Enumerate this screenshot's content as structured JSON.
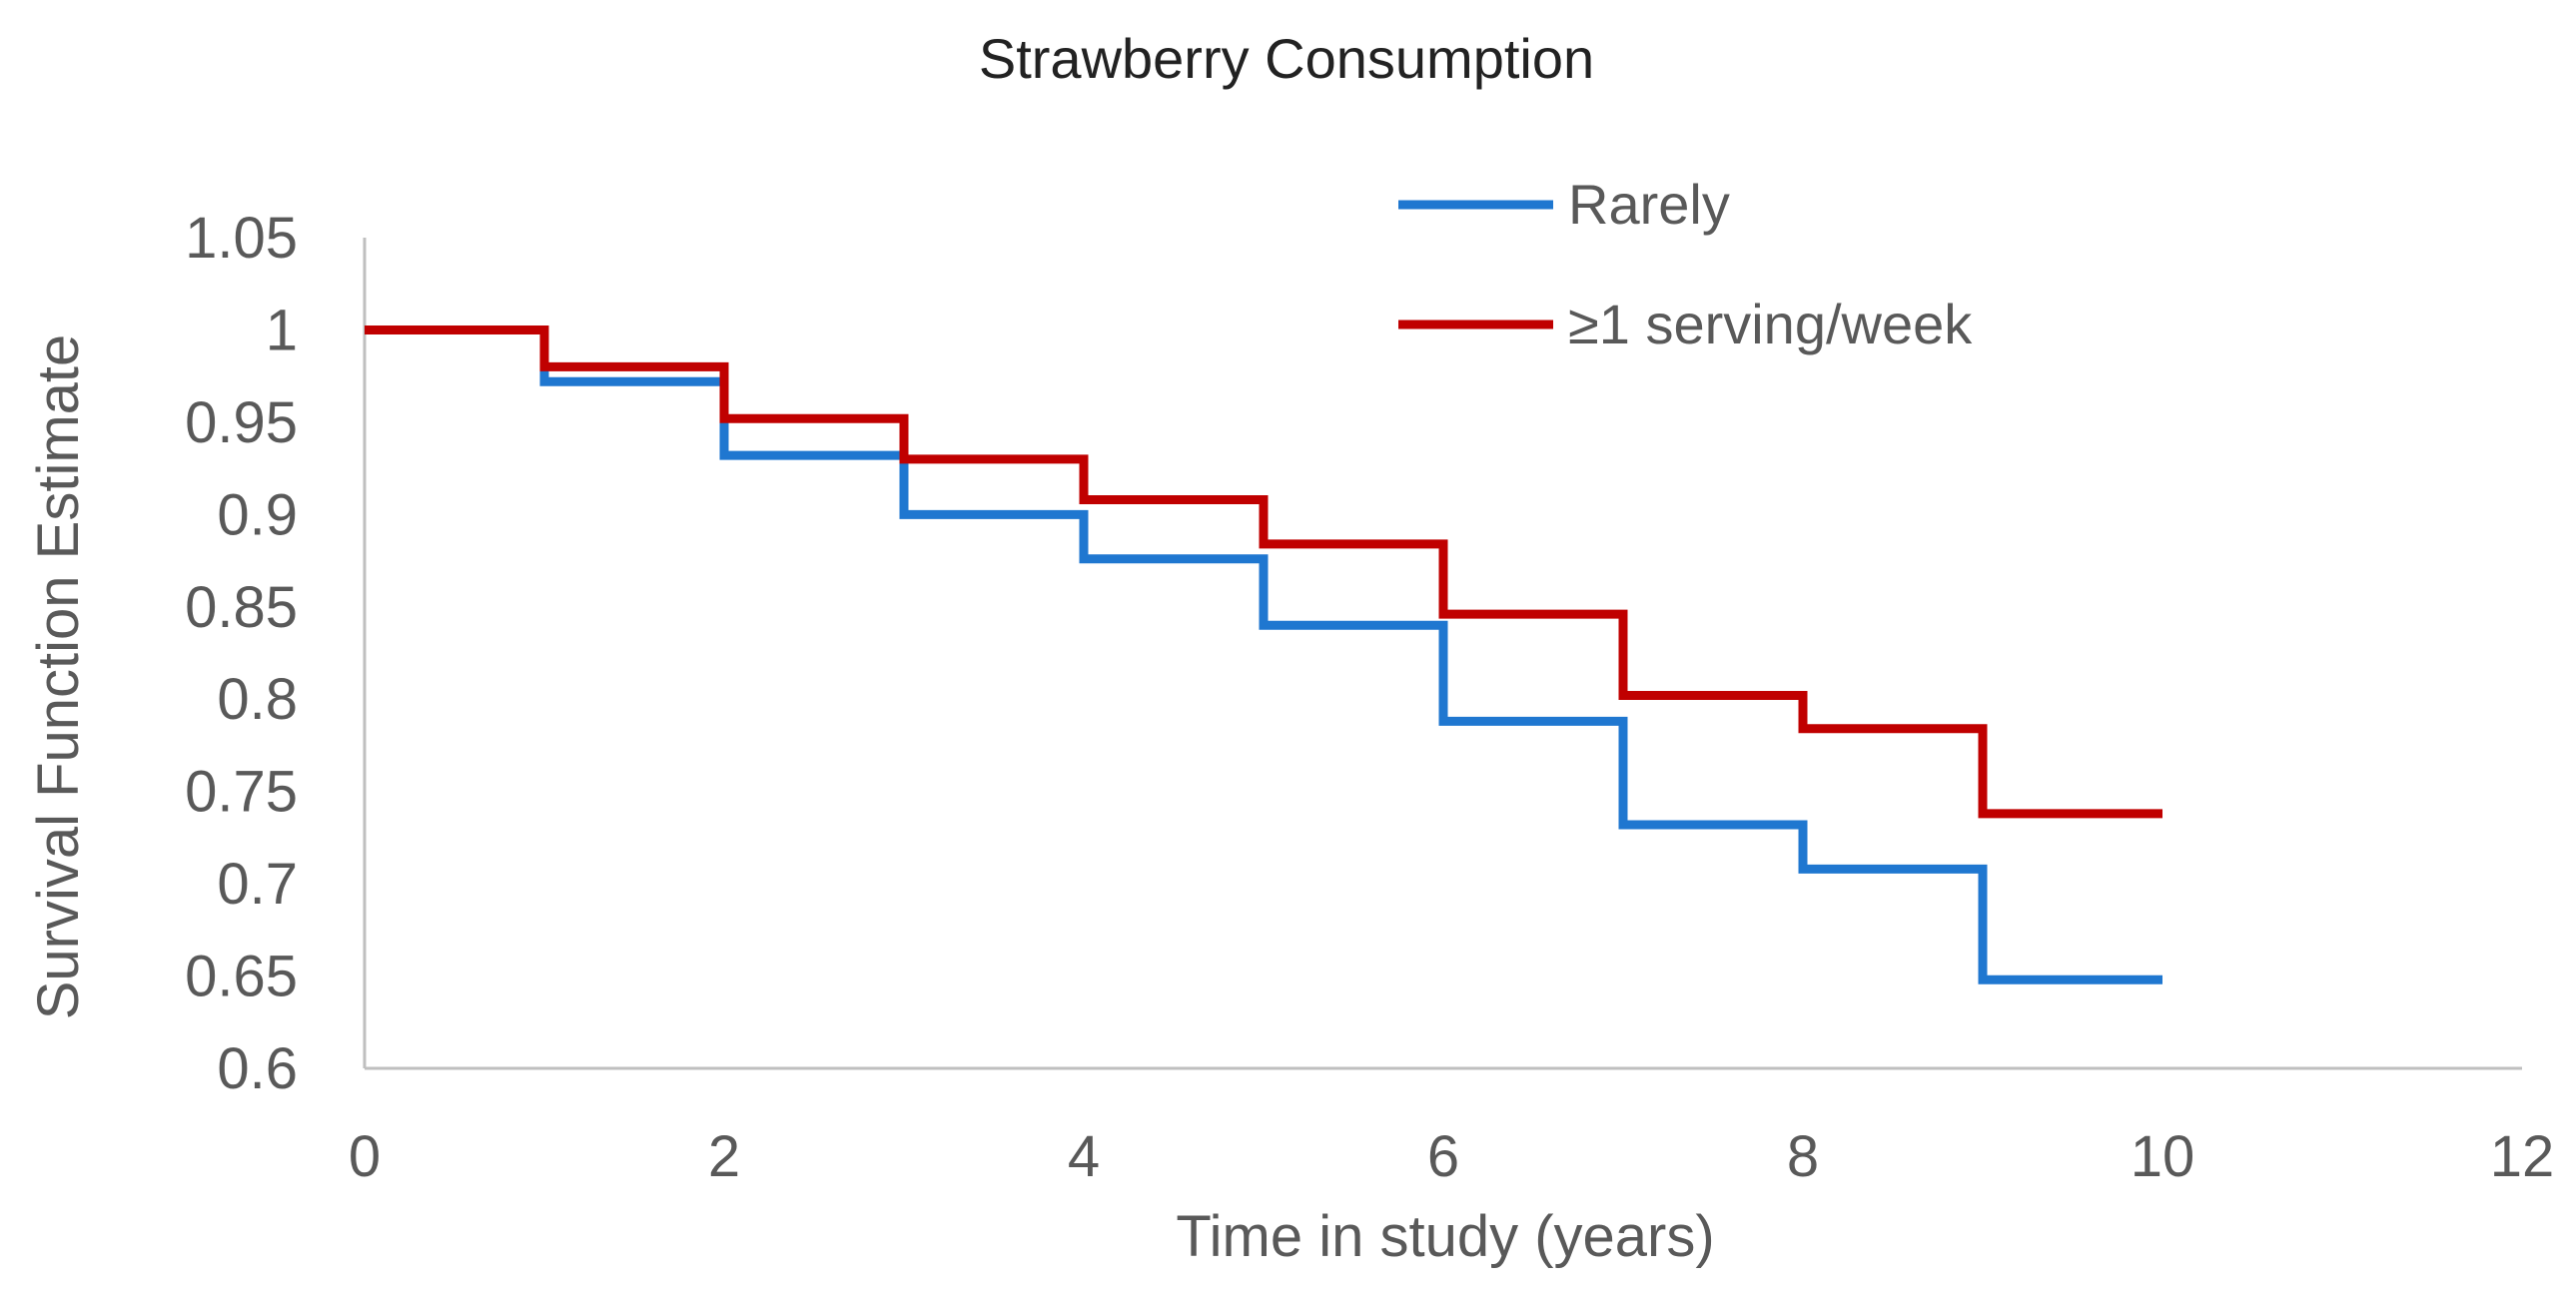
{
  "chart_data": {
    "type": "line",
    "step": true,
    "title": "Strawberry Consumption",
    "xlabel": "Time in study (years)",
    "ylabel": "Survival Function Estimate",
    "xlim": [
      0,
      12
    ],
    "ylim": [
      0.6,
      1.05
    ],
    "x_ticks": [
      0,
      2,
      4,
      6,
      8,
      10,
      12
    ],
    "y_ticks": [
      0.6,
      0.65,
      0.7,
      0.75,
      0.8,
      0.85,
      0.9,
      0.95,
      1,
      1.05
    ],
    "x_tick_labels": [
      "0",
      "2",
      "4",
      "6",
      "8",
      "10",
      "12"
    ],
    "y_tick_labels": [
      "0.6",
      "0.65",
      "0.7",
      "0.75",
      "0.8",
      "0.85",
      "0.9",
      "0.95",
      "1",
      "1.05"
    ],
    "grid": false,
    "legend_position": "top-right",
    "series": [
      {
        "name": "Rarely",
        "color": "#1f77d0",
        "x": [
          0,
          1,
          2,
          3,
          4,
          5,
          6,
          7,
          8,
          9,
          10
        ],
        "y": [
          1.0,
          0.972,
          0.932,
          0.9,
          0.876,
          0.84,
          0.788,
          0.732,
          0.708,
          0.648,
          0.648
        ]
      },
      {
        "name": "≥1 serving/week",
        "color": "#c00000",
        "x": [
          0,
          1,
          2,
          3,
          4,
          5,
          6,
          7,
          8,
          9,
          10
        ],
        "y": [
          1.0,
          0.98,
          0.952,
          0.93,
          0.908,
          0.884,
          0.846,
          0.802,
          0.784,
          0.738,
          0.738
        ]
      }
    ]
  }
}
